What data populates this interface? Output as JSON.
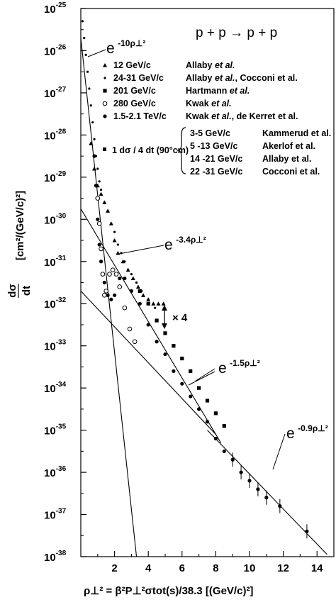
{
  "chart_data": {
    "type": "scatter",
    "title": "p + p → p + p",
    "xlabel": "ρ⊥² = β²P⊥²σtot(s)/38.3   [(GeV/c)²]",
    "ylabel": "dσ/dt   [cm²/(GeV/c)²]",
    "xlim": [
      0,
      15
    ],
    "ylim_log10": [
      -38,
      -25
    ],
    "yscale": "log",
    "grid": false,
    "legend_position": "upper-right",
    "x_ticks": [
      "2",
      "4",
      "6",
      "8",
      "10",
      "12",
      "14"
    ],
    "x_tick_values": [
      2,
      4,
      6,
      8,
      10,
      12,
      14
    ],
    "y_tick_labels": [
      {
        "base": "10",
        "exp": "-25",
        "log": -25
      },
      {
        "base": "10",
        "exp": "-26",
        "log": -26
      },
      {
        "base": "10",
        "exp": "-27",
        "log": -27
      },
      {
        "base": "10",
        "exp": "-28",
        "log": -28
      },
      {
        "base": "10",
        "exp": "-29",
        "log": -29
      },
      {
        "base": "10",
        "exp": "-30",
        "log": -30
      },
      {
        "base": "10",
        "exp": "-31",
        "log": -31
      },
      {
        "base": "10",
        "exp": "-32",
        "log": -32
      },
      {
        "base": "10",
        "exp": "-33",
        "log": -33
      },
      {
        "base": "10",
        "exp": "-34",
        "log": -34
      },
      {
        "base": "10",
        "exp": "-35",
        "log": -35
      },
      {
        "base": "10",
        "exp": "-36",
        "log": -36
      },
      {
        "base": "10",
        "exp": "-37",
        "log": -37
      },
      {
        "base": "10",
        "exp": "-38",
        "log": -38
      }
    ],
    "legend": [
      {
        "marker": "triangle",
        "momentum": "12 GeV/c",
        "ref_name": "Allaby",
        "ref_suffix": "et al.",
        "ref_extra": ""
      },
      {
        "marker": "dot-small",
        "momentum": "24-31 GeV/c",
        "ref_name": "Allaby",
        "ref_suffix": "et al.",
        "ref_extra": ", Cocconi et al."
      },
      {
        "marker": "square",
        "momentum": "201 GeV/c",
        "ref_name": "Hartmann",
        "ref_suffix": "et al.",
        "ref_extra": ""
      },
      {
        "marker": "open-circle",
        "momentum": "280 GeV/c",
        "ref_name": "Kwak",
        "ref_suffix": "et al.",
        "ref_extra": ""
      },
      {
        "marker": "filled-circle",
        "momentum": "1.5-2.1 TeV/c",
        "ref_name": "Kwak",
        "ref_suffix": "et al.",
        "ref_extra": ", de Kerret et al."
      }
    ],
    "legend_90deg_label": "1 dσ / 4 dt (90°cm)",
    "legend_90deg": [
      {
        "momentum": "3-5 GeV/c",
        "ref": "Kammerud et al."
      },
      {
        "momentum": "5 -13 GeV/c",
        "ref": "Akerlof et al."
      },
      {
        "momentum": "14 -21 GeV/c",
        "ref": "Allaby et al."
      },
      {
        "momentum": "22 -31 GeV/c",
        "ref": "Cocconi et al."
      }
    ],
    "fit_lines": [
      {
        "label_base": "e",
        "label_exp": "-10ρ⊥²",
        "slope": -10,
        "x_range": [
          0,
          3.3
        ]
      },
      {
        "label_base": "e",
        "label_exp": "-3.4ρ⊥²",
        "slope": -3.4,
        "x_range": [
          0,
          8.3
        ]
      },
      {
        "label_base": "e",
        "label_exp": "-1.5ρ⊥²",
        "slope": -1.5,
        "x_range": [
          0,
          8.0
        ]
      },
      {
        "label_base": "e",
        "label_exp": "-0.9ρ⊥²",
        "slope": -0.9,
        "x_range": [
          7.5,
          14.6
        ]
      }
    ],
    "fit_line_log10_endpoints": [
      {
        "x0": 0.0,
        "y0": -25.7,
        "x1": 3.3,
        "y1": -38.0
      },
      {
        "x0": 0.0,
        "y0": -29.75,
        "x1": 8.3,
        "y1": -35.3
      },
      {
        "x0": 0.0,
        "y0": -31.7,
        "x1": 8.0,
        "y1": -35.1
      },
      {
        "x0": 7.5,
        "y0": -35.0,
        "x1": 14.6,
        "y1": -37.95
      }
    ],
    "annotation_x4": "× 4",
    "series": [
      {
        "name": "12 GeV/c",
        "marker": "triangle",
        "x": [
          0.6,
          0.8,
          1.0,
          1.2,
          1.4,
          1.6,
          1.8,
          2.0,
          2.2,
          2.5,
          2.8,
          3.1,
          3.4,
          3.7,
          4.0,
          4.3,
          4.6,
          4.9
        ],
        "y_log10": [
          -28.2,
          -28.8,
          -29.2,
          -29.4,
          -29.6,
          -29.8,
          -30.1,
          -30.5,
          -30.8,
          -31.0,
          -31.2,
          -31.4,
          -31.6,
          -31.8,
          -31.9,
          -32.0,
          -32.0,
          -32.0
        ]
      },
      {
        "name": "24-31 GeV/c",
        "marker": "dot-small",
        "x": [
          0.1,
          0.2,
          0.3,
          0.4,
          0.5,
          0.6,
          0.7,
          0.8,
          0.9,
          1.0,
          1.1,
          1.2,
          1.4,
          1.6,
          1.8,
          2.0,
          2.2,
          2.4,
          2.6,
          2.8,
          3.0,
          3.3,
          3.6,
          4.0,
          4.4
        ],
        "y_log10": [
          -25.3,
          -25.7,
          -26.1,
          -26.5,
          -26.9,
          -27.3,
          -27.7,
          -28.1,
          -28.5,
          -28.8,
          -29.1,
          -29.3,
          -29.6,
          -29.8,
          -30.1,
          -30.3,
          -30.6,
          -30.8,
          -31.0,
          -31.2,
          -31.3,
          -31.5,
          -31.7,
          -31.9,
          -32.1
        ]
      },
      {
        "name": "201 GeV/c",
        "marker": "square",
        "x": [
          3.5,
          4.0,
          4.5,
          5.0,
          5.5,
          6.0,
          6.5,
          7.0,
          7.5,
          8.0,
          8.5
        ],
        "y_log10": [
          -31.7,
          -32.0,
          -32.4,
          -32.7,
          -33.0,
          -33.3,
          -33.6,
          -34.0,
          -34.3,
          -34.6,
          -34.9
        ]
      },
      {
        "name": "280 GeV/c",
        "marker": "open-circle",
        "x": [
          1.0,
          1.1,
          1.2,
          1.3,
          1.4,
          1.5,
          1.7,
          1.9,
          2.1,
          2.3,
          2.6,
          2.9,
          3.2
        ],
        "y_log10": [
          -29.5,
          -30.1,
          -30.7,
          -31.3,
          -31.8,
          -31.7,
          -31.3,
          -31.2,
          -31.3,
          -31.6,
          -32.1,
          -32.6,
          -32.9
        ]
      },
      {
        "name": "1.5-2.1 TeV/c",
        "marker": "filled-circle",
        "x": [
          0.8,
          0.9,
          1.0,
          1.1,
          1.2,
          1.4,
          1.6,
          1.8,
          2.0,
          2.3,
          2.6,
          3.0,
          3.5,
          4.0,
          4.5,
          5.0,
          5.5,
          6.0,
          6.5,
          7.0,
          7.5,
          8.0,
          8.5,
          9.0,
          9.5,
          10.0,
          10.5,
          11.0,
          11.8,
          13.4
        ],
        "y_log10": [
          -28.5,
          -29.2,
          -30.0,
          -30.6,
          -31.0,
          -31.5,
          -31.8,
          -31.9,
          -31.8,
          -31.4,
          -31.4,
          -31.7,
          -32.0,
          -32.5,
          -32.9,
          -33.2,
          -33.6,
          -33.9,
          -34.2,
          -34.5,
          -34.8,
          -35.2,
          -35.5,
          -35.7,
          -36.0,
          -36.2,
          -36.4,
          -36.6,
          -36.8,
          -37.4
        ]
      }
    ]
  }
}
